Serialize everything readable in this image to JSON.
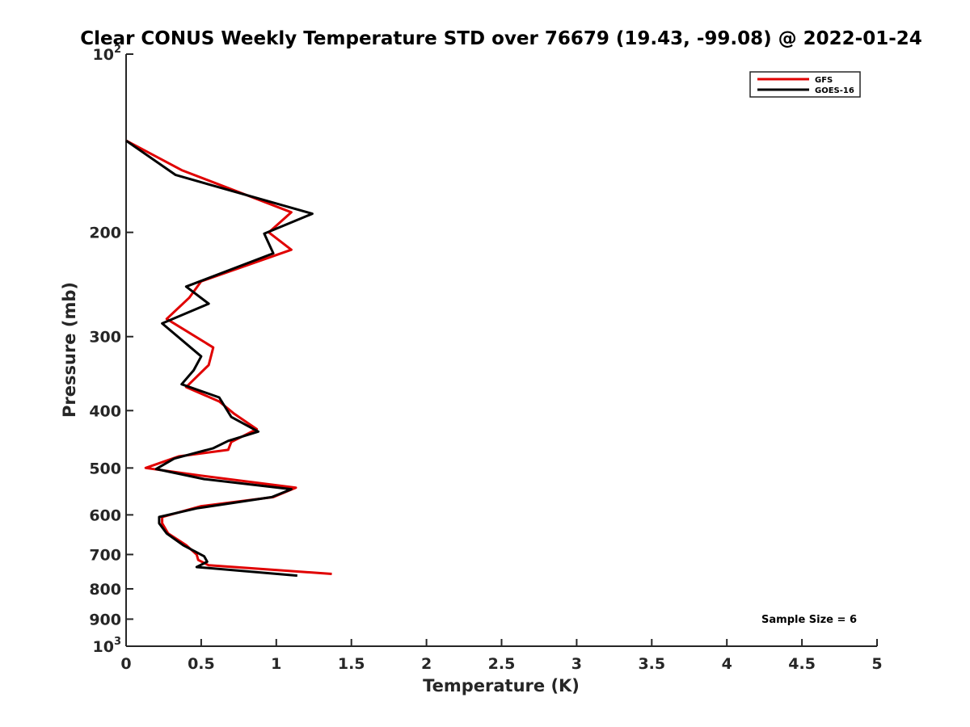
{
  "chart_data": {
    "type": "line",
    "title": "Clear CONUS Weekly Temperature STD over 76679 (19.43, -99.08) @ 2022-01-24",
    "xlabel": "Temperature (K)",
    "ylabel": "Pressure (mb)",
    "xlim": [
      0,
      5
    ],
    "ylim": [
      100,
      1000
    ],
    "yscale": "log",
    "y_reversed": true,
    "grid": false,
    "legend_position": "top-right",
    "x_ticks": [
      0,
      0.5,
      1,
      1.5,
      2,
      2.5,
      3,
      3.5,
      4,
      4.5,
      5
    ],
    "x_tick_labels": [
      "0",
      "0.5",
      "1",
      "1.5",
      "2",
      "2.5",
      "3",
      "3.5",
      "4",
      "4.5",
      "5"
    ],
    "y_ticks": [
      100,
      200,
      300,
      400,
      500,
      600,
      700,
      800,
      900,
      1000
    ],
    "y_tick_labels": [
      {
        "base": "10",
        "exp": "2"
      },
      {
        "base": "200",
        "exp": ""
      },
      {
        "base": "300",
        "exp": ""
      },
      {
        "base": "400",
        "exp": ""
      },
      {
        "base": "500",
        "exp": ""
      },
      {
        "base": "600",
        "exp": ""
      },
      {
        "base": "700",
        "exp": ""
      },
      {
        "base": "800",
        "exp": ""
      },
      {
        "base": "900",
        "exp": ""
      },
      {
        "base": "10",
        "exp": "3"
      }
    ],
    "annotation": "Sample Size = 6",
    "series": [
      {
        "name": "GFS",
        "color": "#e00000",
        "points": [
          [
            0.0,
            140
          ],
          [
            0.37,
            157
          ],
          [
            1.1,
            185
          ],
          [
            0.95,
            200
          ],
          [
            1.1,
            214
          ],
          [
            0.5,
            242
          ],
          [
            0.42,
            258
          ],
          [
            0.27,
            280
          ],
          [
            0.58,
            313
          ],
          [
            0.55,
            335
          ],
          [
            0.4,
            365
          ],
          [
            0.62,
            386
          ],
          [
            0.72,
            405
          ],
          [
            0.87,
            430
          ],
          [
            0.7,
            452
          ],
          [
            0.68,
            466
          ],
          [
            0.35,
            478
          ],
          [
            0.13,
            500
          ],
          [
            0.5,
            515
          ],
          [
            1.13,
            540
          ],
          [
            0.98,
            560
          ],
          [
            0.5,
            580
          ],
          [
            0.24,
            605
          ],
          [
            0.24,
            620
          ],
          [
            0.28,
            645
          ],
          [
            0.4,
            675
          ],
          [
            0.47,
            700
          ],
          [
            0.48,
            715
          ],
          [
            0.55,
            730
          ],
          [
            1.37,
            755
          ]
        ]
      },
      {
        "name": "GOES-16",
        "color": "#000000",
        "points": [
          [
            0.0,
            140
          ],
          [
            0.33,
            160
          ],
          [
            1.24,
            186
          ],
          [
            0.92,
            201
          ],
          [
            0.98,
            217
          ],
          [
            0.4,
            247
          ],
          [
            0.55,
            264
          ],
          [
            0.24,
            285
          ],
          [
            0.5,
            324
          ],
          [
            0.45,
            342
          ],
          [
            0.37,
            361
          ],
          [
            0.62,
            380
          ],
          [
            0.7,
            410
          ],
          [
            0.88,
            434
          ],
          [
            0.68,
            450
          ],
          [
            0.58,
            463
          ],
          [
            0.32,
            482
          ],
          [
            0.2,
            502
          ],
          [
            0.52,
            522
          ],
          [
            1.1,
            543
          ],
          [
            0.97,
            560
          ],
          [
            0.47,
            585
          ],
          [
            0.22,
            605
          ],
          [
            0.22,
            620
          ],
          [
            0.27,
            645
          ],
          [
            0.38,
            675
          ],
          [
            0.52,
            705
          ],
          [
            0.54,
            720
          ],
          [
            0.47,
            735
          ],
          [
            1.14,
            760
          ]
        ]
      }
    ]
  }
}
